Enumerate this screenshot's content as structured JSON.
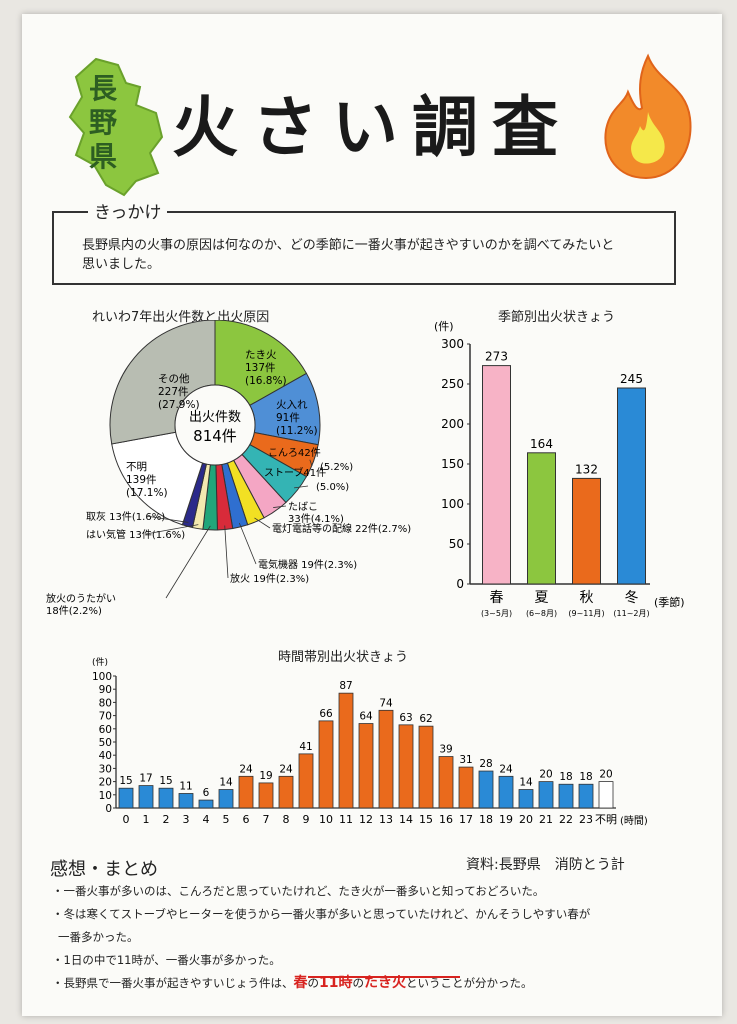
{
  "header": {
    "prefecture_label": "長野県",
    "title": "火さい調査"
  },
  "intro": {
    "label": "きっかけ",
    "text_line1": "長野県内の火事の原因は何なのか、どの季節に一番火事が起きやすいのかを調べてみたいと",
    "text_line2": "思いました。"
  },
  "chart_data": [
    {
      "type": "pie",
      "title": "れいわ7年出火件数と出火原因",
      "center_label": "出火件数",
      "center_value": "814件",
      "slices": [
        {
          "name": "たき火",
          "count": "137件",
          "pct": "(16.8%)",
          "value": 137,
          "color": "#8cc63f"
        },
        {
          "name": "火入れ",
          "count": "91件",
          "pct": "(11.2%)",
          "value": 91,
          "color": "#4f8fd6"
        },
        {
          "name": "こんろ",
          "count": "42件",
          "pct": "(5.2%)",
          "value": 42,
          "color": "#ea6a1c"
        },
        {
          "name": "ストーブ",
          "count": "41件",
          "pct": "(5.0%)",
          "value": 41,
          "color": "#34b4b4"
        },
        {
          "name": "たばこ",
          "count": "33件",
          "pct": "(4.1%)",
          "value": 33,
          "color": "#f4a6c4"
        },
        {
          "name": "電灯電話等の配線",
          "count": "22件",
          "pct": "(2.7%)",
          "value": 22,
          "color": "#f2e023"
        },
        {
          "name": "電気機器",
          "count": "19件",
          "pct": "(2.3%)",
          "value": 19,
          "color": "#2f6fd0"
        },
        {
          "name": "放火",
          "count": "19件",
          "pct": "(2.3%)",
          "value": 19,
          "color": "#d82b3a"
        },
        {
          "name": "放火のうたがい",
          "count": "18件",
          "pct": "(2.2%)",
          "value": 18,
          "color": "#21a57a"
        },
        {
          "name": "はい気管",
          "count": "13件",
          "pct": "(1.6%)",
          "value": 13,
          "color": "#f3e9b0"
        },
        {
          "name": "取灰",
          "count": "13件",
          "pct": "(1.6%)",
          "value": 13,
          "color": "#2b2a8a"
        },
        {
          "name": "不明",
          "count": "139件",
          "pct": "(17.1%)",
          "value": 139,
          "color": "#ffffff"
        },
        {
          "name": "その他",
          "count": "227件",
          "pct": "(27.9%)",
          "value": 227,
          "color": "#b8bdb2"
        }
      ]
    },
    {
      "type": "bar",
      "title": "季節別出火状きょう",
      "ylabel": "(件)",
      "xlabel": "(季節)",
      "ylim": [
        0,
        300
      ],
      "yticks": [
        0,
        50,
        100,
        150,
        200,
        250,
        300
      ],
      "categories": [
        "春",
        "夏",
        "秋",
        "冬"
      ],
      "ranges": [
        "(3~5月)",
        "(6~8月)",
        "(9~11月)",
        "(11~2月)"
      ],
      "values": [
        273,
        164,
        132,
        245
      ],
      "colors": [
        "#f7b3c6",
        "#8cc63f",
        "#ea6a1c",
        "#2a8ad6"
      ]
    },
    {
      "type": "bar",
      "title": "時間帯別出火状きょう",
      "ylabel": "(件)",
      "xlabel": "(時間)",
      "ylim": [
        0,
        100
      ],
      "yticks": [
        0,
        10,
        20,
        30,
        40,
        50,
        60,
        70,
        80,
        90,
        100
      ],
      "categories": [
        "0",
        "1",
        "2",
        "3",
        "4",
        "5",
        "6",
        "7",
        "8",
        "9",
        "10",
        "11",
        "12",
        "13",
        "14",
        "15",
        "16",
        "17",
        "18",
        "19",
        "20",
        "21",
        "22",
        "23",
        "不明"
      ],
      "values": [
        15,
        17,
        15,
        11,
        6,
        14,
        24,
        19,
        24,
        41,
        66,
        87,
        64,
        74,
        63,
        62,
        39,
        31,
        28,
        24,
        14,
        20,
        18,
        18,
        20
      ],
      "colors": [
        "#2a8ad6",
        "#2a8ad6",
        "#2a8ad6",
        "#2a8ad6",
        "#2a8ad6",
        "#2a8ad6",
        "#ea6a1c",
        "#ea6a1c",
        "#ea6a1c",
        "#ea6a1c",
        "#ea6a1c",
        "#ea6a1c",
        "#ea6a1c",
        "#ea6a1c",
        "#ea6a1c",
        "#ea6a1c",
        "#ea6a1c",
        "#ea6a1c",
        "#2a8ad6",
        "#2a8ad6",
        "#2a8ad6",
        "#2a8ad6",
        "#2a8ad6",
        "#2a8ad6",
        "#ffffff"
      ]
    }
  ],
  "summary": {
    "title": "感想・まとめ",
    "source": "資料:長野県　消防とう計",
    "line1": "・一番火事が多いのは、こんろだと思っていたけれど、たき火が一番多いと知っておどろいた。",
    "line2": "・冬は寒くてストーブやヒーターを使うから一番火事が多いと思っていたけれど、かんそうしやすい春が",
    "line3": "一番多かった。",
    "line4": "・1日の中で11時が、一番火事が多かった。",
    "line5_pre": "・長野県で一番火事が起きやすいじょう件は、",
    "line5_h1": "春",
    "line5_mid1": "の",
    "line5_h2": "11時",
    "line5_mid2": "の",
    "line5_h3": "たき火",
    "line5_post": "ということが分かった。"
  }
}
